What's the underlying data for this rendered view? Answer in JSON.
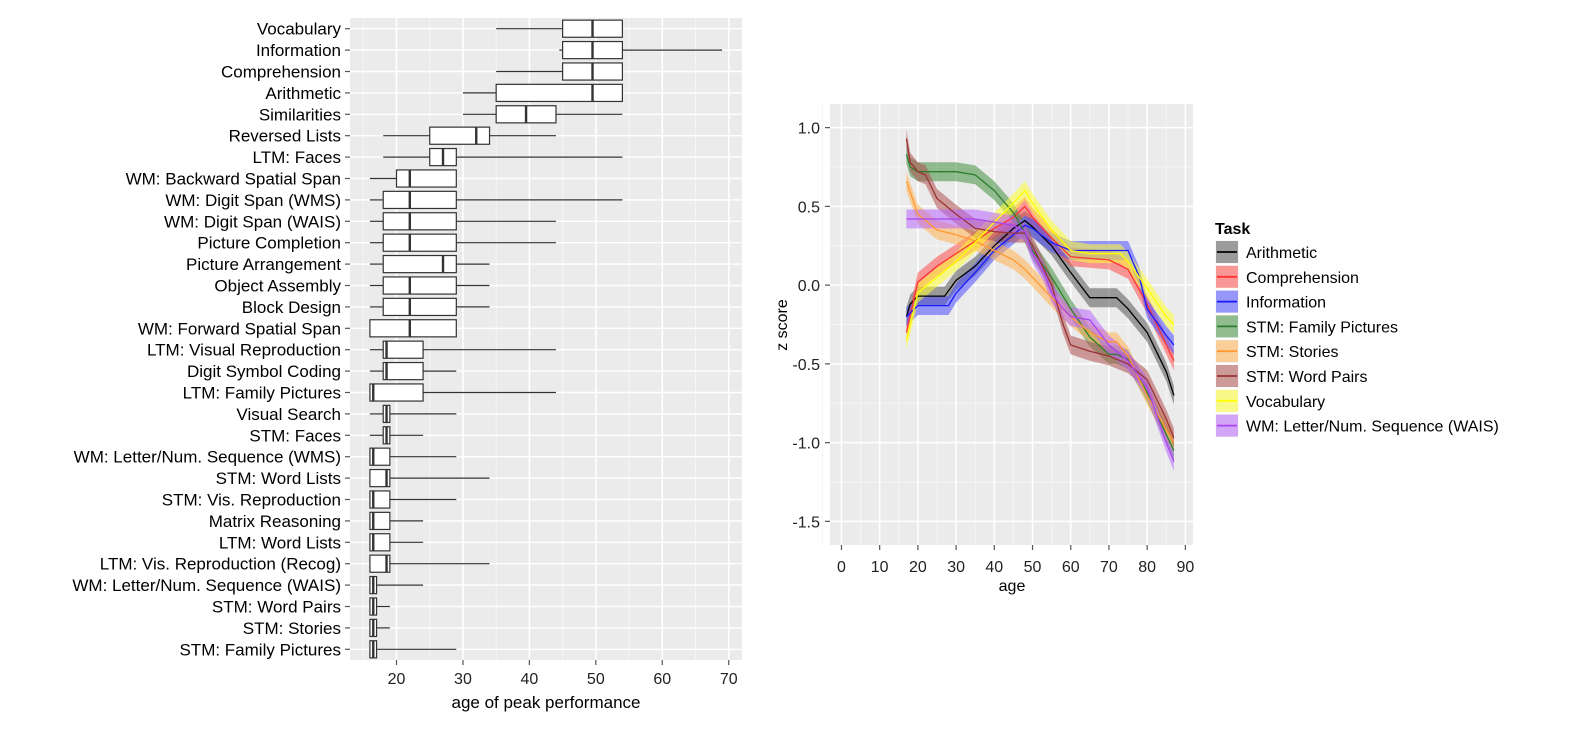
{
  "chart_data": [
    {
      "type": "boxplot",
      "xlabel": "age of peak performance",
      "xlim": [
        13,
        72
      ],
      "xticks": [
        20,
        30,
        40,
        50,
        60,
        70
      ],
      "grid": true,
      "tasks": [
        {
          "name": "Vocabulary",
          "whisker_low": 35,
          "q1": 45,
          "median": 49.5,
          "q3": 54,
          "whisker_high": 54
        },
        {
          "name": "Information",
          "whisker_low": 44.5,
          "q1": 45,
          "median": 49.5,
          "q3": 54,
          "whisker_high": 69
        },
        {
          "name": "Comprehension",
          "whisker_low": 35,
          "q1": 45,
          "median": 49.5,
          "q3": 54,
          "whisker_high": 54
        },
        {
          "name": "Arithmetic",
          "whisker_low": 30,
          "q1": 35,
          "median": 49.5,
          "q3": 54,
          "whisker_high": 54
        },
        {
          "name": "Similarities",
          "whisker_low": 30,
          "q1": 35,
          "median": 39.5,
          "q3": 44,
          "whisker_high": 54
        },
        {
          "name": "Reversed Lists",
          "whisker_low": 18,
          "q1": 25,
          "median": 32,
          "q3": 34,
          "whisker_high": 44
        },
        {
          "name": "LTM: Faces",
          "whisker_low": 18,
          "q1": 25,
          "median": 27,
          "q3": 29,
          "whisker_high": 54
        },
        {
          "name": "WM: Backward Spatial Span",
          "whisker_low": 16,
          "q1": 20,
          "median": 22,
          "q3": 29,
          "whisker_high": 29
        },
        {
          "name": "WM: Digit Span (WMS)",
          "whisker_low": 16,
          "q1": 18,
          "median": 22,
          "q3": 29,
          "whisker_high": 54
        },
        {
          "name": "WM: Digit Span (WAIS)",
          "whisker_low": 16,
          "q1": 18,
          "median": 22,
          "q3": 29,
          "whisker_high": 44
        },
        {
          "name": "Picture Completion",
          "whisker_low": 16,
          "q1": 18,
          "median": 22,
          "q3": 29,
          "whisker_high": 44
        },
        {
          "name": "Picture Arrangement",
          "whisker_low": 16,
          "q1": 18,
          "median": 27,
          "q3": 29,
          "whisker_high": 34
        },
        {
          "name": "Object Assembly",
          "whisker_low": 16,
          "q1": 18,
          "median": 22,
          "q3": 29,
          "whisker_high": 34
        },
        {
          "name": "Block Design",
          "whisker_low": 16,
          "q1": 18,
          "median": 22,
          "q3": 29,
          "whisker_high": 34
        },
        {
          "name": "WM: Forward Spatial Span",
          "whisker_low": 16,
          "q1": 16,
          "median": 22,
          "q3": 29,
          "whisker_high": 29
        },
        {
          "name": "LTM: Visual Reproduction",
          "whisker_low": 16,
          "q1": 18,
          "median": 18.5,
          "q3": 24,
          "whisker_high": 44
        },
        {
          "name": "Digit Symbol Coding",
          "whisker_low": 16,
          "q1": 18,
          "median": 18.5,
          "q3": 24,
          "whisker_high": 29
        },
        {
          "name": "LTM: Family Pictures",
          "whisker_low": 16,
          "q1": 16,
          "median": 16.5,
          "q3": 24,
          "whisker_high": 44
        },
        {
          "name": "Visual Search",
          "whisker_low": 16,
          "q1": 18,
          "median": 18.5,
          "q3": 19,
          "whisker_high": 29
        },
        {
          "name": "STM: Faces",
          "whisker_low": 16,
          "q1": 18,
          "median": 18.5,
          "q3": 19,
          "whisker_high": 24
        },
        {
          "name": "WM: Letter/Num. Sequence (WMS)",
          "whisker_low": 16,
          "q1": 16,
          "median": 16.5,
          "q3": 19,
          "whisker_high": 29
        },
        {
          "name": "STM: Word Lists",
          "whisker_low": 16,
          "q1": 16,
          "median": 18.5,
          "q3": 19,
          "whisker_high": 34
        },
        {
          "name": "STM: Vis. Reproduction",
          "whisker_low": 16,
          "q1": 16,
          "median": 16.5,
          "q3": 19,
          "whisker_high": 29
        },
        {
          "name": "Matrix Reasoning",
          "whisker_low": 16,
          "q1": 16,
          "median": 16.5,
          "q3": 19,
          "whisker_high": 24
        },
        {
          "name": "LTM: Word Lists",
          "whisker_low": 16,
          "q1": 16,
          "median": 16.5,
          "q3": 19,
          "whisker_high": 24
        },
        {
          "name": "LTM: Vis. Reproduction (Recog)",
          "whisker_low": 16,
          "q1": 16,
          "median": 18.5,
          "q3": 19,
          "whisker_high": 34
        },
        {
          "name": "WM: Letter/Num. Sequence (WAIS)",
          "whisker_low": 16,
          "q1": 16,
          "median": 16.5,
          "q3": 17,
          "whisker_high": 24
        },
        {
          "name": "STM: Word Pairs",
          "whisker_low": 16,
          "q1": 16,
          "median": 16.5,
          "q3": 17,
          "whisker_high": 19
        },
        {
          "name": "STM: Stories",
          "whisker_low": 16,
          "q1": 16,
          "median": 16.5,
          "q3": 17,
          "whisker_high": 19
        },
        {
          "name": "STM: Family Pictures",
          "whisker_low": 16,
          "q1": 16,
          "median": 16.5,
          "q3": 17,
          "whisker_high": 29
        }
      ]
    },
    {
      "type": "line",
      "xlabel": "age",
      "ylabel": "z score",
      "xlim": [
        -3,
        92
      ],
      "ylim": [
        -1.65,
        1.15
      ],
      "xticks": [
        0,
        10,
        20,
        30,
        40,
        50,
        60,
        70,
        80,
        90
      ],
      "yticks": [
        1.0,
        0.5,
        0.0,
        -0.5,
        -1.0,
        -1.5
      ],
      "ytick_labels": [
        "1.0",
        "0.5",
        "0.0",
        "-0.5",
        "-1.0",
        "-1.5"
      ],
      "legend_title": "Task",
      "legend_position": "right",
      "band_halfwidth": 0.06,
      "grid": true,
      "series": [
        {
          "name": "Arithmetic",
          "line_color": "#000000",
          "band_color": "#555555",
          "x": [
            17,
            18,
            20,
            25,
            27,
            30,
            35,
            40,
            45,
            48,
            50,
            55,
            60,
            65,
            70,
            72,
            75,
            80,
            85,
            87
          ],
          "y": [
            -0.2,
            -0.12,
            -0.07,
            -0.07,
            -0.07,
            0.03,
            0.12,
            0.25,
            0.36,
            0.41,
            0.37,
            0.25,
            0.08,
            -0.08,
            -0.08,
            -0.08,
            -0.15,
            -0.3,
            -0.55,
            -0.7
          ]
        },
        {
          "name": "Comprehension",
          "line_color": "#ff3333",
          "band_color": "#ff4d4d",
          "x": [
            17,
            20,
            25,
            30,
            35,
            40,
            45,
            48,
            50,
            55,
            60,
            65,
            70,
            75,
            80,
            85,
            87
          ],
          "y": [
            -0.3,
            0.02,
            0.12,
            0.2,
            0.28,
            0.36,
            0.43,
            0.5,
            0.43,
            0.3,
            0.18,
            0.17,
            0.16,
            0.1,
            -0.12,
            -0.38,
            -0.48
          ]
        },
        {
          "name": "Information",
          "line_color": "#1a1aff",
          "band_color": "#4d4dff",
          "x": [
            17,
            20,
            25,
            28,
            30,
            35,
            40,
            45,
            48,
            50,
            55,
            60,
            70,
            75,
            78,
            80,
            85,
            87
          ],
          "y": [
            -0.2,
            -0.13,
            -0.13,
            -0.13,
            -0.05,
            0.08,
            0.22,
            0.32,
            0.38,
            0.36,
            0.27,
            0.22,
            0.22,
            0.22,
            0.05,
            -0.15,
            -0.32,
            -0.38
          ]
        },
        {
          "name": "STM: Family Pictures",
          "line_color": "#2e7d2e",
          "band_color": "#3f8f3f",
          "x": [
            17,
            18,
            20,
            25,
            30,
            35,
            40,
            45,
            48,
            50,
            55,
            60,
            65,
            70,
            72,
            75,
            80,
            85,
            87
          ],
          "y": [
            0.83,
            0.75,
            0.72,
            0.72,
            0.72,
            0.7,
            0.6,
            0.46,
            0.33,
            0.22,
            0.05,
            -0.15,
            -0.33,
            -0.44,
            -0.44,
            -0.47,
            -0.68,
            -0.95,
            -1.05
          ]
        },
        {
          "name": "STM: Stories",
          "line_color": "#ff9933",
          "band_color": "#ffb050",
          "x": [
            17,
            20,
            25,
            30,
            35,
            40,
            45,
            48,
            50,
            55,
            60,
            65,
            70,
            72,
            75,
            80,
            85,
            87
          ],
          "y": [
            0.66,
            0.45,
            0.35,
            0.32,
            0.28,
            0.22,
            0.16,
            0.1,
            0.05,
            -0.08,
            -0.2,
            -0.3,
            -0.36,
            -0.36,
            -0.45,
            -0.7,
            -0.92,
            -1.0
          ]
        },
        {
          "name": "STM: Word Pairs",
          "line_color": "#993333",
          "band_color": "#b05050",
          "x": [
            17,
            18,
            20,
            22,
            25,
            30,
            35,
            40,
            45,
            48,
            50,
            55,
            58,
            60,
            65,
            70,
            75,
            80,
            85,
            87
          ],
          "y": [
            0.93,
            0.78,
            0.72,
            0.7,
            0.55,
            0.45,
            0.36,
            0.34,
            0.33,
            0.33,
            0.25,
            0.0,
            -0.25,
            -0.38,
            -0.42,
            -0.45,
            -0.5,
            -0.6,
            -0.85,
            -0.97
          ]
        },
        {
          "name": "Vocabulary",
          "line_color": "#ffff00",
          "band_color": "#ffff33",
          "x": [
            17,
            20,
            25,
            30,
            35,
            40,
            45,
            48,
            50,
            55,
            60,
            65,
            70,
            73,
            75,
            80,
            85,
            87
          ],
          "y": [
            -0.35,
            -0.05,
            0.05,
            0.15,
            0.27,
            0.4,
            0.52,
            0.6,
            0.52,
            0.35,
            0.22,
            0.2,
            0.2,
            0.2,
            0.15,
            -0.02,
            -0.2,
            -0.25
          ]
        },
        {
          "name": "WM: Letter/Num. Sequence (WAIS)",
          "line_color": "#aa44ee",
          "band_color": "#b866ff",
          "x": [
            17,
            20,
            25,
            30,
            35,
            40,
            45,
            48,
            50,
            53,
            55,
            58,
            60,
            65,
            70,
            75,
            80,
            85,
            87
          ],
          "y": [
            0.42,
            0.42,
            0.42,
            0.42,
            0.42,
            0.4,
            0.38,
            0.34,
            0.2,
            0.08,
            -0.05,
            -0.15,
            -0.2,
            -0.22,
            -0.38,
            -0.48,
            -0.65,
            -1.0,
            -1.12
          ]
        }
      ]
    }
  ]
}
